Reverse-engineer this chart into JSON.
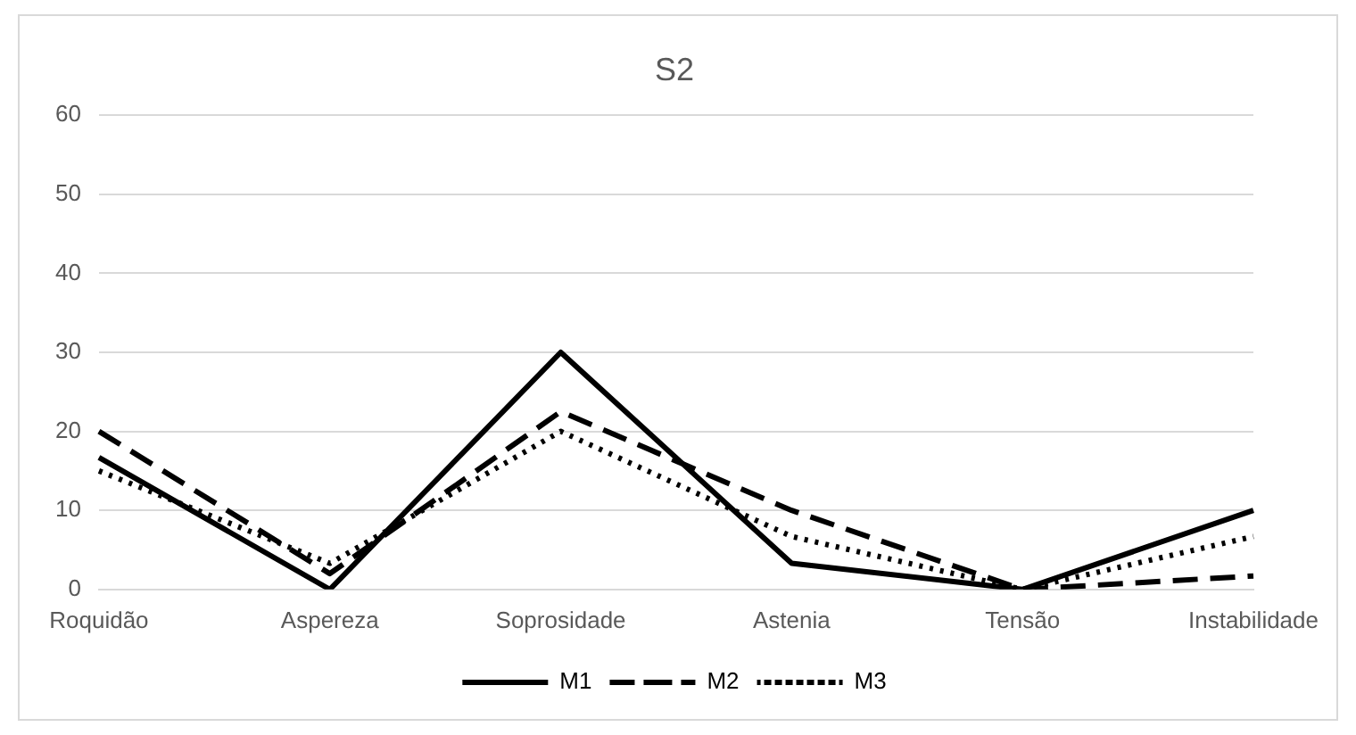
{
  "chart_data": {
    "type": "line",
    "title": "S2",
    "categories": [
      "Roquidão",
      "Aspereza",
      "Soprosidade",
      "Astenia",
      "Tensão",
      "Instabilidade"
    ],
    "series": [
      {
        "name": "M1",
        "color": "#000000",
        "line_style": "solid",
        "values": [
          16.7,
          0,
          30,
          3.3,
          0,
          10
        ]
      },
      {
        "name": "M2",
        "color": "#000000",
        "line_style": "dashed",
        "values": [
          20,
          2,
          22.5,
          10,
          0,
          1.7
        ]
      },
      {
        "name": "M3",
        "color": "#000000",
        "line_style": "dotted",
        "values": [
          15,
          3.3,
          20,
          6.7,
          0,
          6.7
        ]
      }
    ],
    "ylim": [
      0,
      60
    ],
    "yticks": [
      0,
      10,
      20,
      30,
      40,
      50,
      60
    ],
    "grid": "y",
    "legend": "bottom",
    "marker": "none"
  }
}
